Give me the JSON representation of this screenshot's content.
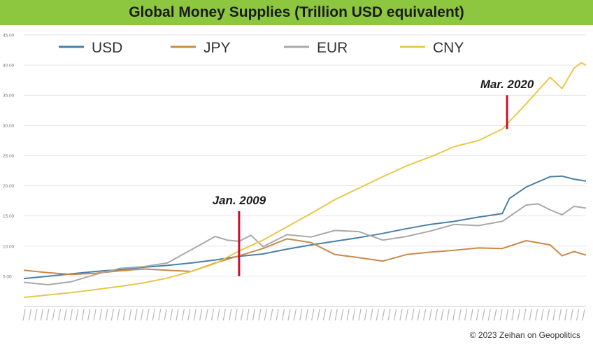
{
  "title": "Global Money Supplies (Trillion USD equivalent)",
  "footer": "© 2023 Zeihan on Geopolitics",
  "colors": {
    "title_bar": "#8dc63f",
    "USD": "#4a7fa7",
    "JPY": "#c98a4b",
    "EUR": "#a9a9a9",
    "CNY": "#e8c84a",
    "marker": "#c8102e",
    "grid": "#e6e6e6"
  },
  "chart_data": {
    "type": "line",
    "title": "Global Money Supplies (Trillion USD equivalent)",
    "xlabel": "",
    "ylabel": "",
    "xlim": [
      2000,
      2023.5
    ],
    "ylim": [
      0,
      45
    ],
    "yticks": [
      "5.00",
      "10.00",
      "15.00",
      "20.00",
      "25.00",
      "30.00",
      "35.00",
      "40.00",
      "45.00"
    ],
    "grid": true,
    "legend_position": "top",
    "series": [
      {
        "name": "USD",
        "x": [
          2000,
          2001,
          2002,
          2003,
          2004,
          2005,
          2006,
          2007,
          2008,
          2009,
          2010,
          2011,
          2012,
          2013,
          2014,
          2015,
          2016,
          2017,
          2018,
          2019,
          2020,
          2020.3,
          2021,
          2022,
          2022.5,
          2023,
          2023.5
        ],
        "values": [
          4.6,
          5.0,
          5.4,
          5.8,
          6.1,
          6.5,
          6.8,
          7.2,
          7.7,
          8.3,
          8.7,
          9.5,
          10.2,
          10.8,
          11.4,
          12.1,
          12.9,
          13.6,
          14.1,
          14.8,
          15.4,
          17.9,
          19.8,
          21.5,
          21.6,
          21.1,
          20.8
        ]
      },
      {
        "name": "JPY",
        "x": [
          2000,
          2001,
          2002,
          2003,
          2004,
          2005,
          2006,
          2007,
          2008,
          2009,
          2010,
          2011,
          2012,
          2013,
          2014,
          2015,
          2016,
          2017,
          2018,
          2019,
          2020,
          2021,
          2022,
          2022.5,
          2023,
          2023.5
        ],
        "values": [
          6.0,
          5.6,
          5.3,
          5.5,
          5.9,
          6.2,
          6.0,
          5.8,
          7.2,
          8.4,
          9.6,
          11.2,
          10.6,
          8.6,
          8.1,
          7.5,
          8.6,
          9.0,
          9.3,
          9.7,
          9.6,
          10.9,
          10.2,
          8.4,
          9.1,
          8.5
        ]
      },
      {
        "name": "EUR",
        "x": [
          2000,
          2001,
          2002,
          2003,
          2004,
          2005,
          2006,
          2007,
          2008,
          2008.5,
          2009,
          2009.5,
          2010,
          2010.5,
          2011,
          2012,
          2013,
          2014,
          2015,
          2016,
          2017,
          2018,
          2019,
          2020,
          2021,
          2021.5,
          2022,
          2022.5,
          2023,
          2023.5
        ],
        "values": [
          4.0,
          3.6,
          4.1,
          5.3,
          6.3,
          6.6,
          7.2,
          9.4,
          11.6,
          11.0,
          10.8,
          11.8,
          9.9,
          10.9,
          11.9,
          11.5,
          12.6,
          12.4,
          11.0,
          11.6,
          12.5,
          13.6,
          13.4,
          14.1,
          16.8,
          17.0,
          16.0,
          15.2,
          16.6,
          16.3
        ]
      },
      {
        "name": "CNY",
        "x": [
          2000,
          2001,
          2002,
          2003,
          2004,
          2005,
          2006,
          2007,
          2008,
          2009,
          2010,
          2011,
          2012,
          2013,
          2014,
          2015,
          2016,
          2017,
          2018,
          2019,
          2020,
          2021,
          2022,
          2022.5,
          2023,
          2023.3,
          2023.5
        ],
        "values": [
          1.5,
          1.9,
          2.3,
          2.8,
          3.3,
          3.9,
          4.7,
          5.8,
          7.1,
          9.2,
          11.0,
          13.2,
          15.4,
          17.7,
          19.6,
          21.5,
          23.3,
          24.8,
          26.5,
          27.5,
          29.4,
          33.6,
          38.0,
          36.1,
          39.5,
          40.4,
          40.0
        ]
      }
    ],
    "annotations": [
      {
        "text": "Jan. 2009",
        "x": 2009.0,
        "y_from": 5.0,
        "y_to": 15.8
      },
      {
        "text": "Mar. 2020",
        "x": 2020.2,
        "y_from": 29.4,
        "y_to": 35.0
      }
    ]
  }
}
